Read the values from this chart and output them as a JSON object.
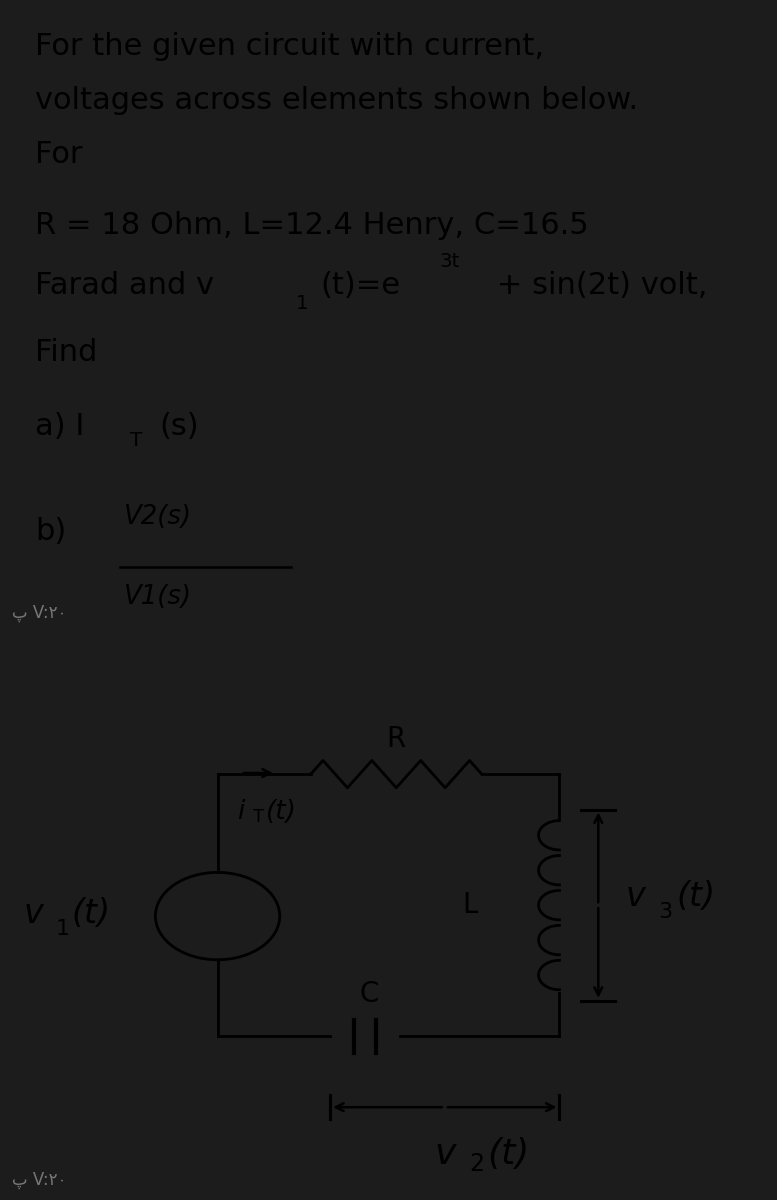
{
  "bg_top": "#cfe2f0",
  "bg_bottom": "#ffffff",
  "bg_divider": "#1c1c1c",
  "text_color": "#000000",
  "watermark": "پ V:۲۰",
  "line1": "For the given circuit with current,",
  "line2": "voltages across elements shown below.",
  "line3": "For",
  "line4": "R = 18 Ohm, L=12.4 Henry, C=16.5",
  "line5": "Farad and v",
  "line5b": "(t)=e",
  "line5c": "3t",
  "line5d": " + sin(2t) volt,",
  "line5_sub": "1",
  "line6": "Find",
  "line7a": "a) I",
  "line7b": "T",
  "line7c": "(s)",
  "line8": "b)",
  "frac_num": "V2(s)",
  "frac_den": "V1(s)",
  "R_label": "R",
  "L_label": "L",
  "C_label": "C",
  "iT_label": "i",
  "iT_sub": "T",
  "iT_rest": "(t)",
  "v1_label": "v",
  "v1_sub": "1",
  "v1_rest": "(t)",
  "v3_label": "v",
  "v3_sub": "3",
  "v3_rest": "(t)",
  "v2_label": "v",
  "v2_sub": "2",
  "v2_rest": "(t)"
}
